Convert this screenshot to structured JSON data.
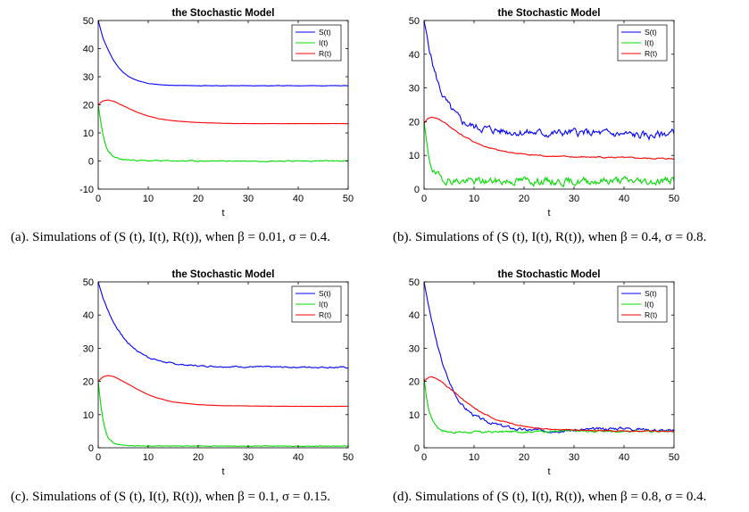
{
  "chart_data": [
    {
      "type": "line",
      "title": "the Stochastic Model",
      "xlabel": "t",
      "ylabel": "",
      "xlim": [
        0,
        50
      ],
      "ylim": [
        -10,
        50
      ],
      "xticks": [
        "0",
        "10",
        "20",
        "30",
        "40",
        "50"
      ],
      "yticks": [
        "-10",
        "0",
        "10",
        "20",
        "30",
        "40",
        "50"
      ],
      "legend_position": "top-right",
      "caption": "(a). Simulations of (S (t), I(t), R(t)), when β = 0.01, σ = 0.4.",
      "series": [
        {
          "name": "S(t)",
          "color": "#0000ff",
          "noise": 0.05,
          "seed": 11,
          "x": [
            0,
            1,
            2,
            3,
            4,
            5,
            6,
            7,
            8,
            10,
            12,
            15,
            20,
            25,
            30,
            35,
            40,
            45,
            50
          ],
          "y": [
            50,
            43.5,
            39.5,
            36,
            33.5,
            31.5,
            30.2,
            29.2,
            28.5,
            27.6,
            27.2,
            26.9,
            26.8,
            26.8,
            26.8,
            26.8,
            26.8,
            26.8,
            26.8
          ]
        },
        {
          "name": "I(t)",
          "color": "#00dd00",
          "noise": 0.15,
          "seed": 23,
          "x": [
            0,
            0.5,
            1,
            1.5,
            2,
            3,
            4,
            5,
            6,
            8,
            10,
            15,
            20,
            30,
            40,
            50
          ],
          "y": [
            20,
            14,
            9,
            5.5,
            3.5,
            1.5,
            0.8,
            0.5,
            0.4,
            0.2,
            0.1,
            0.05,
            0,
            0,
            0,
            0
          ]
        },
        {
          "name": "R(t)",
          "color": "#ff0000",
          "noise": 0.03,
          "seed": 37,
          "x": [
            0,
            0.5,
            1,
            2,
            3,
            4,
            6,
            8,
            10,
            12,
            15,
            20,
            25,
            30,
            40,
            50
          ],
          "y": [
            20,
            20.8,
            21.4,
            21.7,
            21.3,
            20.5,
            18.8,
            17.2,
            16,
            15.1,
            14.3,
            13.7,
            13.4,
            13.3,
            13.3,
            13.3
          ]
        }
      ]
    },
    {
      "type": "line",
      "title": "the Stochastic Model",
      "xlabel": "t",
      "ylabel": "",
      "xlim": [
        0,
        50
      ],
      "ylim": [
        0,
        50
      ],
      "xticks": [
        "0",
        "10",
        "20",
        "30",
        "40",
        "50"
      ],
      "yticks": [
        "0",
        "10",
        "20",
        "30",
        "40",
        "50"
      ],
      "legend_position": "top-right",
      "caption": "(b). Simulations of (S (t), I(t), R(t)), when β = 0.4, σ = 0.8.",
      "series": [
        {
          "name": "S(t)",
          "color": "#0000ff",
          "noise": 0.9,
          "seed": 5,
          "x": [
            0,
            1,
            2,
            3,
            4,
            5,
            6,
            7,
            8,
            10,
            12,
            15,
            20,
            25,
            30,
            35,
            40,
            45,
            50
          ],
          "y": [
            50,
            42,
            35.5,
            30.5,
            27,
            24.5,
            22.5,
            20.8,
            19.7,
            18.5,
            18,
            17.3,
            16.8,
            16.5,
            16.8,
            16.5,
            16.2,
            15.7,
            16.8
          ]
        },
        {
          "name": "I(t)",
          "color": "#00dd00",
          "noise": 0.9,
          "seed": 19,
          "x": [
            0,
            0.5,
            1,
            2,
            3,
            4,
            5,
            6,
            8,
            10,
            15,
            20,
            25,
            30,
            35,
            40,
            45,
            50
          ],
          "y": [
            20,
            14,
            9,
            5,
            3.5,
            3,
            2.6,
            2.4,
            2.3,
            2.3,
            2.3,
            2.5,
            2.3,
            2.2,
            2.5,
            2.5,
            2.2,
            2.8
          ]
        },
        {
          "name": "R(t)",
          "color": "#ff0000",
          "noise": 0.15,
          "seed": 41,
          "x": [
            0,
            0.5,
            1,
            2,
            3,
            4,
            6,
            8,
            10,
            12,
            15,
            20,
            25,
            30,
            35,
            40,
            45,
            50
          ],
          "y": [
            19.5,
            20.5,
            21.2,
            21.3,
            20.7,
            19.8,
            17.6,
            15.6,
            14,
            12.7,
            11.4,
            10.3,
            9.8,
            9.5,
            9.5,
            9.3,
            9.1,
            9
          ]
        }
      ]
    },
    {
      "type": "line",
      "title": "the Stochastic Model",
      "xlabel": "t",
      "ylabel": "",
      "xlim": [
        0,
        50
      ],
      "ylim": [
        0,
        50
      ],
      "xticks": [
        "0",
        "10",
        "20",
        "30",
        "40",
        "50"
      ],
      "yticks": [
        "0",
        "10",
        "20",
        "30",
        "40",
        "50"
      ],
      "legend_position": "top-right",
      "caption": "(c). Simulations of (S (t), I(t), R(t)), when β = 0.1, σ = 0.15.",
      "series": [
        {
          "name": "S(t)",
          "color": "#0000ff",
          "noise": 0.18,
          "seed": 7,
          "x": [
            0,
            1,
            2,
            3,
            4,
            5,
            6,
            8,
            10,
            12,
            15,
            18,
            20,
            25,
            30,
            35,
            40,
            45,
            50
          ],
          "y": [
            50,
            45,
            41.2,
            38,
            35.5,
            33.3,
            31.5,
            29,
            27.3,
            26.3,
            25.3,
            24.9,
            24.7,
            24.5,
            24.4,
            24.3,
            24.3,
            24.3,
            24.2
          ]
        },
        {
          "name": "I(t)",
          "color": "#00dd00",
          "noise": 0.08,
          "seed": 29,
          "x": [
            0,
            0.5,
            1,
            1.5,
            2,
            3,
            4,
            5,
            6,
            8,
            10,
            15,
            20,
            30,
            40,
            50
          ],
          "y": [
            20,
            13,
            8,
            5,
            3,
            1.5,
            1,
            0.8,
            0.7,
            0.6,
            0.55,
            0.5,
            0.5,
            0.5,
            0.5,
            0.5
          ]
        },
        {
          "name": "R(t)",
          "color": "#ff0000",
          "noise": 0.03,
          "seed": 43,
          "x": [
            0,
            0.5,
            1,
            2,
            3,
            4,
            6,
            8,
            10,
            12,
            15,
            20,
            25,
            30,
            40,
            50
          ],
          "y": [
            20,
            20.8,
            21.4,
            21.8,
            21.5,
            20.8,
            19.2,
            17.5,
            16,
            14.9,
            13.8,
            13,
            12.7,
            12.6,
            12.5,
            12.5
          ]
        }
      ]
    },
    {
      "type": "line",
      "title": "the Stochastic Model",
      "xlabel": "t",
      "ylabel": "",
      "xlim": [
        0,
        50
      ],
      "ylim": [
        0,
        50
      ],
      "xticks": [
        "0",
        "10",
        "20",
        "30",
        "40",
        "50"
      ],
      "yticks": [
        "0",
        "10",
        "20",
        "30",
        "40",
        "50"
      ],
      "legend_position": "top-right",
      "caption": "(d). Simulations of (S (t), I(t), R(t)), when β = 0.8, σ = 0.4.",
      "series": [
        {
          "name": "S(t)",
          "color": "#0000ff",
          "noise": 0.35,
          "seed": 3,
          "x": [
            0,
            1,
            2,
            3,
            4,
            5,
            6,
            7,
            8,
            10,
            12,
            15,
            18,
            20,
            25,
            30,
            35,
            40,
            45,
            50
          ],
          "y": [
            50,
            42,
            35,
            29,
            24,
            20,
            16.8,
            14.2,
            12.2,
            9.8,
            8.2,
            6.8,
            5.8,
            5.4,
            5.2,
            5.3,
            5.6,
            6,
            5.5,
            5
          ]
        },
        {
          "name": "I(t)",
          "color": "#00dd00",
          "noise": 0.25,
          "seed": 17,
          "x": [
            0,
            0.5,
            1,
            2,
            3,
            4,
            5,
            6,
            8,
            10,
            15,
            20,
            25,
            30,
            40,
            50
          ],
          "y": [
            21,
            15,
            11,
            7.5,
            5.8,
            5.1,
            4.8,
            4.7,
            4.7,
            4.7,
            4.8,
            4.9,
            5,
            5,
            5,
            5
          ]
        },
        {
          "name": "R(t)",
          "color": "#ff0000",
          "noise": 0.12,
          "seed": 31,
          "x": [
            0,
            0.5,
            1,
            2,
            3,
            4,
            6,
            8,
            10,
            12,
            15,
            20,
            25,
            30,
            35,
            40,
            45,
            50
          ],
          "y": [
            20,
            20.8,
            21.3,
            21.2,
            20.4,
            19.3,
            16.8,
            14.2,
            12,
            10.2,
            8.2,
            6.4,
            5.6,
            5.3,
            5.2,
            5.1,
            5,
            4.9
          ]
        }
      ]
    }
  ]
}
